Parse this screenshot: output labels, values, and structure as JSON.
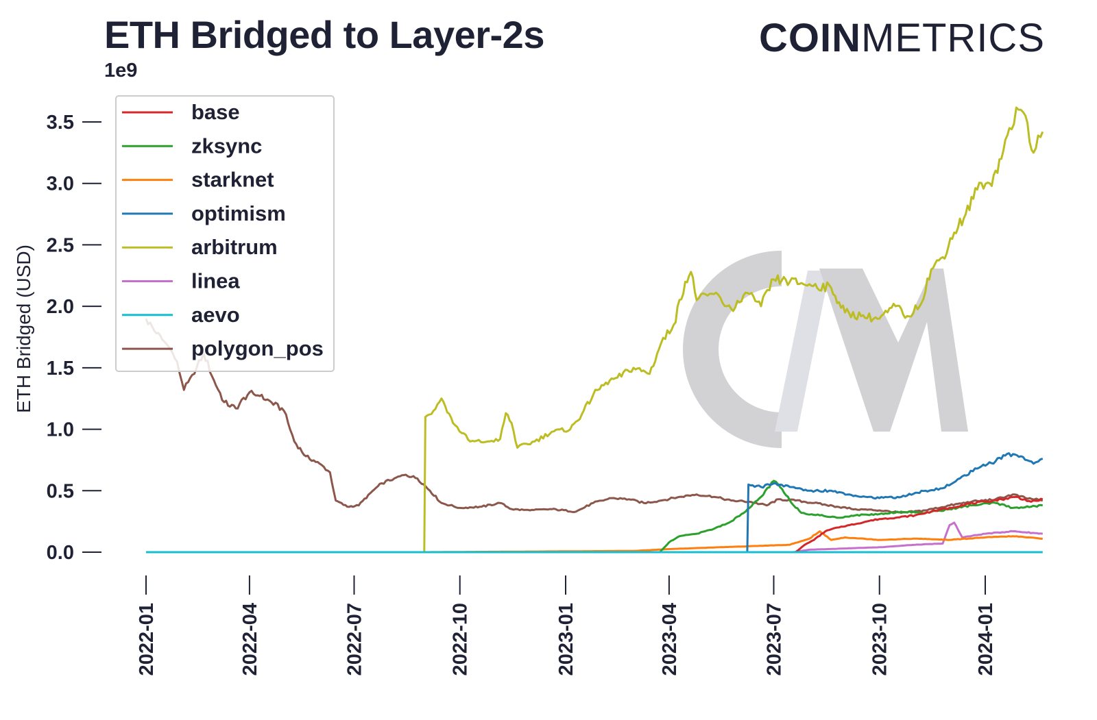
{
  "header": {
    "title": "ETH Bridged to Layer-2s",
    "brand_bold": "COIN",
    "brand_light": "METRICS"
  },
  "chart_data": {
    "type": "line",
    "title": "ETH Bridged to Layer-2s",
    "ylabel": "ETH Bridged (USD)",
    "xlabel": "",
    "y_scale_label": "1e9",
    "ylim": [
      0,
      3.6
    ],
    "yticks": [
      "0.0",
      "0.5",
      "1.0",
      "1.5",
      "2.0",
      "2.5",
      "3.0",
      "3.5"
    ],
    "xlim": [
      "2022-01-01",
      "2024-02-20"
    ],
    "xticks": [
      "2022-01",
      "2022-04",
      "2022-07",
      "2022-10",
      "2023-01",
      "2023-04",
      "2023-07",
      "2023-10",
      "2024-01"
    ],
    "grid": false,
    "legend_position": "top-left",
    "series": [
      {
        "name": "base",
        "color": "#d62728",
        "points": [
          [
            "2023-07-20",
            0.0
          ],
          [
            "2023-07-28",
            0.06
          ],
          [
            "2023-08-05",
            0.1
          ],
          [
            "2023-08-15",
            0.17
          ],
          [
            "2023-08-25",
            0.2
          ],
          [
            "2023-09-05",
            0.22
          ],
          [
            "2023-09-20",
            0.25
          ],
          [
            "2023-10-01",
            0.27
          ],
          [
            "2023-10-15",
            0.28
          ],
          [
            "2023-11-01",
            0.3
          ],
          [
            "2023-11-15",
            0.33
          ],
          [
            "2023-12-01",
            0.36
          ],
          [
            "2023-12-15",
            0.39
          ],
          [
            "2024-01-01",
            0.41
          ],
          [
            "2024-01-15",
            0.43
          ],
          [
            "2024-01-28",
            0.45
          ],
          [
            "2024-02-10",
            0.41
          ],
          [
            "2024-02-20",
            0.43
          ]
        ]
      },
      {
        "name": "zksync",
        "color": "#2ca02c",
        "points": [
          [
            "2022-01-01",
            0.0
          ],
          [
            "2023-03-24",
            0.0
          ],
          [
            "2023-04-01",
            0.08
          ],
          [
            "2023-04-10",
            0.13
          ],
          [
            "2023-04-25",
            0.15
          ],
          [
            "2023-05-10",
            0.19
          ],
          [
            "2023-05-25",
            0.25
          ],
          [
            "2023-06-10",
            0.36
          ],
          [
            "2023-06-20",
            0.45
          ],
          [
            "2023-07-01",
            0.58
          ],
          [
            "2023-07-05",
            0.55
          ],
          [
            "2023-07-15",
            0.42
          ],
          [
            "2023-07-25",
            0.32
          ],
          [
            "2023-08-10",
            0.3
          ],
          [
            "2023-08-25",
            0.28
          ],
          [
            "2023-09-10",
            0.3
          ],
          [
            "2023-10-01",
            0.31
          ],
          [
            "2023-10-20",
            0.33
          ],
          [
            "2023-11-10",
            0.32
          ],
          [
            "2023-12-01",
            0.35
          ],
          [
            "2023-12-20",
            0.38
          ],
          [
            "2024-01-10",
            0.4
          ],
          [
            "2024-01-25",
            0.36
          ],
          [
            "2024-02-10",
            0.37
          ],
          [
            "2024-02-20",
            0.38
          ]
        ]
      },
      {
        "name": "starknet",
        "color": "#ff7f0e",
        "points": [
          [
            "2022-01-01",
            0.0
          ],
          [
            "2022-09-01",
            0.0
          ],
          [
            "2022-12-01",
            0.005
          ],
          [
            "2023-03-01",
            0.01
          ],
          [
            "2023-04-01",
            0.025
          ],
          [
            "2023-05-15",
            0.04
          ],
          [
            "2023-06-15",
            0.05
          ],
          [
            "2023-07-15",
            0.06
          ],
          [
            "2023-08-01",
            0.11
          ],
          [
            "2023-08-10",
            0.17
          ],
          [
            "2023-08-20",
            0.1
          ],
          [
            "2023-09-01",
            0.12
          ],
          [
            "2023-10-01",
            0.1
          ],
          [
            "2023-11-01",
            0.11
          ],
          [
            "2023-12-01",
            0.1
          ],
          [
            "2024-01-01",
            0.12
          ],
          [
            "2024-01-25",
            0.13
          ],
          [
            "2024-02-20",
            0.11
          ]
        ]
      },
      {
        "name": "optimism",
        "color": "#1f77b4",
        "points": [
          [
            "2022-01-01",
            0.0
          ],
          [
            "2023-06-08",
            0.0
          ],
          [
            "2023-06-09",
            0.55
          ],
          [
            "2023-06-20",
            0.53
          ],
          [
            "2023-07-01",
            0.56
          ],
          [
            "2023-07-15",
            0.53
          ],
          [
            "2023-08-01",
            0.5
          ],
          [
            "2023-08-20",
            0.5
          ],
          [
            "2023-09-10",
            0.46
          ],
          [
            "2023-10-01",
            0.44
          ],
          [
            "2023-10-20",
            0.45
          ],
          [
            "2023-11-10",
            0.5
          ],
          [
            "2023-11-25",
            0.52
          ],
          [
            "2023-12-10",
            0.6
          ],
          [
            "2023-12-25",
            0.68
          ],
          [
            "2024-01-10",
            0.74
          ],
          [
            "2024-01-20",
            0.8
          ],
          [
            "2024-02-01",
            0.78
          ],
          [
            "2024-02-12",
            0.72
          ],
          [
            "2024-02-20",
            0.76
          ]
        ]
      },
      {
        "name": "arbitrum",
        "color": "#bcbd22",
        "points": [
          [
            "2022-01-01",
            0.0
          ],
          [
            "2022-08-31",
            0.0
          ],
          [
            "2022-09-01",
            1.1
          ],
          [
            "2022-09-08",
            1.15
          ],
          [
            "2022-09-15",
            1.25
          ],
          [
            "2022-09-25",
            1.05
          ],
          [
            "2022-10-10",
            0.9
          ],
          [
            "2022-10-25",
            0.9
          ],
          [
            "2022-11-05",
            0.92
          ],
          [
            "2022-11-10",
            1.13
          ],
          [
            "2022-11-15",
            1.05
          ],
          [
            "2022-11-20",
            0.85
          ],
          [
            "2022-12-05",
            0.9
          ],
          [
            "2022-12-20",
            0.98
          ],
          [
            "2023-01-05",
            1.0
          ],
          [
            "2023-01-15",
            1.12
          ],
          [
            "2023-01-25",
            1.28
          ],
          [
            "2023-02-05",
            1.38
          ],
          [
            "2023-02-15",
            1.42
          ],
          [
            "2023-03-01",
            1.5
          ],
          [
            "2023-03-15",
            1.45
          ],
          [
            "2023-03-25",
            1.7
          ],
          [
            "2023-04-05",
            1.85
          ],
          [
            "2023-04-15",
            2.2
          ],
          [
            "2023-04-20",
            2.28
          ],
          [
            "2023-04-25",
            2.05
          ],
          [
            "2023-05-10",
            2.1
          ],
          [
            "2023-05-25",
            1.98
          ],
          [
            "2023-06-10",
            2.1
          ],
          [
            "2023-06-20",
            2.0
          ],
          [
            "2023-07-01",
            2.22
          ],
          [
            "2023-07-15",
            2.2
          ],
          [
            "2023-08-01",
            2.18
          ],
          [
            "2023-08-20",
            2.15
          ],
          [
            "2023-09-01",
            1.95
          ],
          [
            "2023-09-15",
            1.92
          ],
          [
            "2023-10-01",
            1.9
          ],
          [
            "2023-10-15",
            2.0
          ],
          [
            "2023-10-25",
            1.92
          ],
          [
            "2023-11-05",
            2.0
          ],
          [
            "2023-11-15",
            2.3
          ],
          [
            "2023-11-25",
            2.4
          ],
          [
            "2023-12-05",
            2.6
          ],
          [
            "2023-12-15",
            2.75
          ],
          [
            "2023-12-25",
            2.95
          ],
          [
            "2024-01-05",
            3.0
          ],
          [
            "2024-01-15",
            3.2
          ],
          [
            "2024-01-22",
            3.45
          ],
          [
            "2024-01-30",
            3.6
          ],
          [
            "2024-02-05",
            3.55
          ],
          [
            "2024-02-12",
            3.25
          ],
          [
            "2024-02-20",
            3.42
          ]
        ]
      },
      {
        "name": "linea",
        "color": "#c570cc",
        "points": [
          [
            "2023-07-18",
            0.0
          ],
          [
            "2023-08-01",
            0.02
          ],
          [
            "2023-09-01",
            0.03
          ],
          [
            "2023-10-01",
            0.04
          ],
          [
            "2023-11-01",
            0.06
          ],
          [
            "2023-11-25",
            0.07
          ],
          [
            "2023-12-01",
            0.22
          ],
          [
            "2023-12-05",
            0.24
          ],
          [
            "2023-12-12",
            0.12
          ],
          [
            "2024-01-01",
            0.15
          ],
          [
            "2024-01-25",
            0.17
          ],
          [
            "2024-02-20",
            0.15
          ]
        ]
      },
      {
        "name": "aevo",
        "color": "#17becf",
        "points": [
          [
            "2022-01-01",
            0.0
          ],
          [
            "2024-02-20",
            0.0
          ]
        ]
      },
      {
        "name": "polygon_pos",
        "color": "#8c564b",
        "points": [
          [
            "2022-01-01",
            1.9
          ],
          [
            "2022-01-10",
            1.78
          ],
          [
            "2022-01-20",
            1.68
          ],
          [
            "2022-01-28",
            1.55
          ],
          [
            "2022-02-03",
            1.32
          ],
          [
            "2022-02-12",
            1.45
          ],
          [
            "2022-02-20",
            1.62
          ],
          [
            "2022-03-01",
            1.4
          ],
          [
            "2022-03-10",
            1.22
          ],
          [
            "2022-03-20",
            1.17
          ],
          [
            "2022-04-01",
            1.3
          ],
          [
            "2022-04-10",
            1.27
          ],
          [
            "2022-04-20",
            1.22
          ],
          [
            "2022-05-01",
            1.15
          ],
          [
            "2022-05-10",
            0.9
          ],
          [
            "2022-05-20",
            0.78
          ],
          [
            "2022-06-01",
            0.72
          ],
          [
            "2022-06-10",
            0.65
          ],
          [
            "2022-06-15",
            0.42
          ],
          [
            "2022-06-25",
            0.37
          ],
          [
            "2022-07-05",
            0.38
          ],
          [
            "2022-07-15",
            0.48
          ],
          [
            "2022-07-25",
            0.56
          ],
          [
            "2022-08-05",
            0.6
          ],
          [
            "2022-08-15",
            0.63
          ],
          [
            "2022-08-25",
            0.6
          ],
          [
            "2022-09-05",
            0.5
          ],
          [
            "2022-09-15",
            0.4
          ],
          [
            "2022-10-01",
            0.36
          ],
          [
            "2022-10-20",
            0.37
          ],
          [
            "2022-11-05",
            0.4
          ],
          [
            "2022-11-15",
            0.35
          ],
          [
            "2022-12-01",
            0.34
          ],
          [
            "2022-12-20",
            0.35
          ],
          [
            "2023-01-10",
            0.33
          ],
          [
            "2023-01-25",
            0.4
          ],
          [
            "2023-02-10",
            0.44
          ],
          [
            "2023-02-25",
            0.43
          ],
          [
            "2023-03-10",
            0.4
          ],
          [
            "2023-03-25",
            0.42
          ],
          [
            "2023-04-10",
            0.45
          ],
          [
            "2023-04-25",
            0.47
          ],
          [
            "2023-05-10",
            0.45
          ],
          [
            "2023-05-25",
            0.42
          ],
          [
            "2023-06-10",
            0.41
          ],
          [
            "2023-06-25",
            0.38
          ],
          [
            "2023-07-05",
            0.43
          ],
          [
            "2023-07-20",
            0.42
          ],
          [
            "2023-08-05",
            0.4
          ],
          [
            "2023-08-25",
            0.37
          ],
          [
            "2023-09-10",
            0.35
          ],
          [
            "2023-10-01",
            0.34
          ],
          [
            "2023-10-20",
            0.32
          ],
          [
            "2023-11-10",
            0.34
          ],
          [
            "2023-12-01",
            0.38
          ],
          [
            "2023-12-20",
            0.41
          ],
          [
            "2024-01-10",
            0.43
          ],
          [
            "2024-01-25",
            0.47
          ],
          [
            "2024-02-05",
            0.44
          ],
          [
            "2024-02-20",
            0.42
          ]
        ]
      }
    ]
  }
}
